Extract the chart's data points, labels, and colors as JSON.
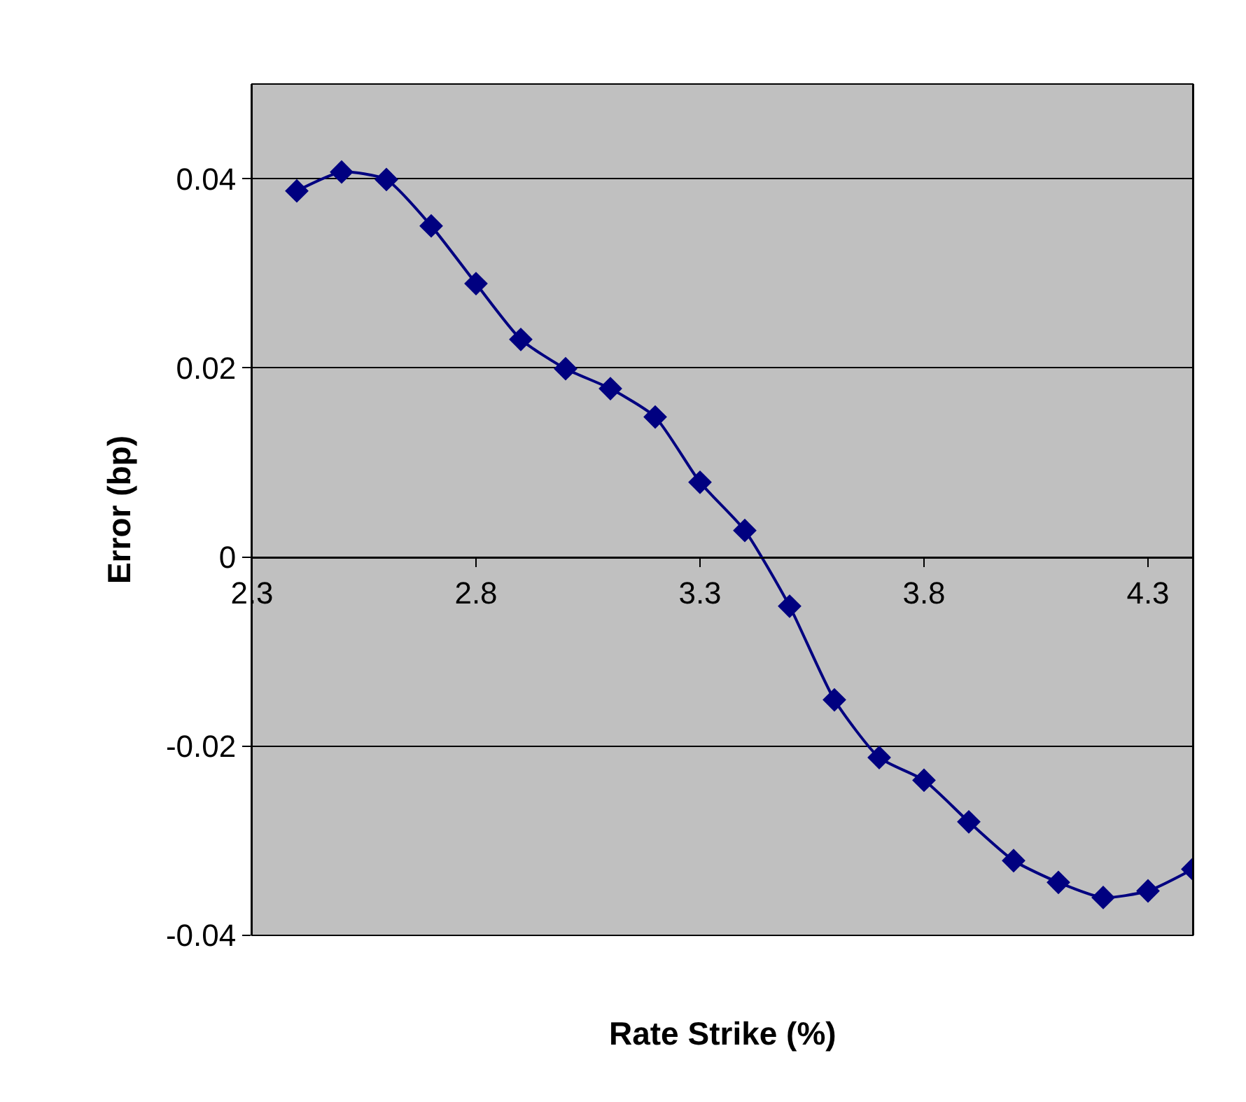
{
  "chart_data": {
    "type": "line",
    "xlabel": "Rate Strike (%)",
    "ylabel": "Error (bp)",
    "x": [
      2.4,
      2.5,
      2.6,
      2.7,
      2.8,
      2.9,
      3.0,
      3.1,
      3.2,
      3.3,
      3.4,
      3.5,
      3.6,
      3.7,
      3.8,
      3.9,
      4.0,
      4.1,
      4.2,
      4.3,
      4.4
    ],
    "series": [
      {
        "color": "#000080",
        "values": [
          0.0387,
          0.0407,
          0.0399,
          0.035,
          0.0289,
          0.023,
          0.0199,
          0.0178,
          0.0148,
          0.0079,
          0.0028,
          -0.0052,
          -0.0151,
          -0.0212,
          -0.0236,
          -0.028,
          -0.0321,
          -0.0344,
          -0.036,
          -0.0353,
          -0.033
        ]
      }
    ],
    "xlim": [
      2.3,
      4.4
    ],
    "xticks": [
      2.3,
      2.8,
      3.3,
      3.8,
      4.3
    ],
    "ylim": [
      -0.04,
      0.05
    ],
    "yticks": [
      -0.04,
      -0.02,
      0,
      0.02,
      0.04
    ],
    "grid": "y",
    "marker": "diamond",
    "line_style": "solid"
  }
}
